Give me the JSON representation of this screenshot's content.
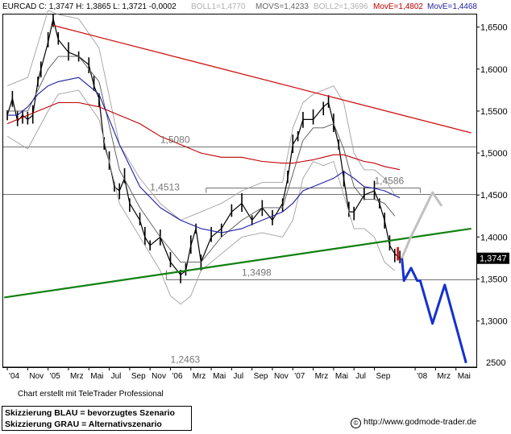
{
  "header": {
    "symbol": "EURCAD C: 1,3747 H: 1,3865 L: 1,3721 -0,0002",
    "boll1": "BOLL1=1,4770",
    "movs": "MOVS=1,4233",
    "boll2": "BOLL2=1,3696",
    "move_red": "MovE=1,4802",
    "move_blue": "MovE=1,4468"
  },
  "footer": {
    "credit": "Chart erstellt mit TeleTrader Professional",
    "legend_blue": "Skizzierung BLAU = bevorzugtes Szenario",
    "legend_grey": "Skizzierung GRAU = Alternativszenario",
    "url": "http://www.godmode-trader.de"
  },
  "colors": {
    "price": "#000000",
    "bollinger": "#a0a0a0",
    "sma": "#555555",
    "ema_long": "#c00000",
    "ema_short": "#1f1fa0",
    "trend_down": "#d01010",
    "trend_up": "#108010",
    "scenario_blue": "#1530d0",
    "scenario_grey": "#c0c0c0",
    "current_price_box": "#000000"
  },
  "chart_data": {
    "type": "line",
    "instrument": "EURCAD",
    "ylim": [
      1.245,
      1.665
    ],
    "y_ticks": [
      1.3,
      1.35,
      1.4,
      1.45,
      1.5,
      1.55,
      1.6,
      1.65
    ],
    "y_tick_labels": [
      "1,3000",
      "1,3500",
      "1,4000",
      "1,4500",
      "1,5000",
      "1,5500",
      "1,6000",
      "1,6500"
    ],
    "y_extra_labels": [
      "2500"
    ],
    "x_tick_labels": [
      "'04",
      "Nov",
      "'05",
      "Mrz",
      "Mai",
      "Jul",
      "Sep",
      "Nov",
      "'06",
      "Mrz",
      "Mai",
      "Jul",
      "Sep",
      "Nov",
      "'07",
      "Mrz",
      "Mai",
      "Jul",
      "Sep",
      "'08",
      "Mrz",
      "Mai"
    ],
    "x_tick_index": [
      0,
      2,
      4,
      6,
      8,
      10,
      12,
      14,
      16,
      18,
      20,
      22,
      24,
      26,
      28,
      30,
      32,
      34,
      36,
      40,
      42,
      44
    ],
    "xlim": [
      -0.4,
      46
    ],
    "current_price": 1.3747,
    "current_price_label": "1,3747",
    "horizontal_levels": [
      {
        "value": 1.508,
        "label": "1,5080"
      },
      {
        "value": 1.4513,
        "label": "1,4513"
      },
      {
        "value": 1.4586,
        "label": "1,4586"
      },
      {
        "value": 1.3498,
        "label": "1,3498"
      },
      {
        "value": 1.2463,
        "label": "1,2463"
      }
    ],
    "trendlines": [
      {
        "name": "down",
        "points": [
          [
            4.5,
            1.652
          ],
          [
            45.5,
            1.524
          ]
        ]
      },
      {
        "name": "up",
        "points": [
          [
            -0.3,
            1.328
          ],
          [
            45.5,
            1.41
          ]
        ]
      }
    ],
    "series": [
      {
        "name": "price",
        "x": [
          0,
          0.5,
          1,
          1.5,
          2,
          2.5,
          3,
          3.3,
          4,
          4.5,
          5,
          6,
          7,
          8,
          8.5,
          9,
          9.5,
          10,
          10.5,
          11,
          11.5,
          12,
          13,
          13.5,
          14,
          15,
          16,
          17,
          17.5,
          18,
          18.5,
          19,
          20,
          21,
          22,
          23,
          24,
          25,
          26,
          27,
          27.5,
          28,
          28.5,
          29,
          30,
          31,
          31.5,
          32,
          32.5,
          33,
          33.5,
          34,
          35,
          36,
          36.5,
          37,
          37.5,
          38,
          38.5
        ],
        "values": [
          1.545,
          1.565,
          1.538,
          1.545,
          1.54,
          1.545,
          1.585,
          1.6,
          1.632,
          1.66,
          1.635,
          1.62,
          1.615,
          1.605,
          1.58,
          1.565,
          1.51,
          1.49,
          1.46,
          1.455,
          1.47,
          1.44,
          1.42,
          1.4,
          1.39,
          1.4,
          1.37,
          1.355,
          1.36,
          1.39,
          1.41,
          1.37,
          1.4,
          1.41,
          1.43,
          1.44,
          1.42,
          1.435,
          1.42,
          1.44,
          1.47,
          1.51,
          1.52,
          1.54,
          1.54,
          1.555,
          1.56,
          1.535,
          1.51,
          1.47,
          1.43,
          1.43,
          1.45,
          1.455,
          1.44,
          1.42,
          1.39,
          1.38,
          1.3747
        ]
      },
      {
        "name": "bollinger-upper",
        "x": [
          0,
          2,
          4,
          5,
          7,
          9,
          11,
          13,
          15,
          17,
          19,
          21,
          23,
          25,
          27,
          28,
          29,
          30,
          31,
          32,
          33,
          34,
          35,
          36,
          37,
          38
        ],
        "values": [
          1.58,
          1.59,
          1.67,
          1.665,
          1.66,
          1.625,
          1.51,
          1.47,
          1.44,
          1.42,
          1.43,
          1.44,
          1.455,
          1.465,
          1.465,
          1.53,
          1.56,
          1.57,
          1.575,
          1.58,
          1.56,
          1.5,
          1.48,
          1.48,
          1.47,
          1.45
        ]
      },
      {
        "name": "bollinger-lower",
        "x": [
          0,
          2,
          4,
          5,
          7,
          9,
          11,
          13,
          15,
          16,
          17,
          18,
          19,
          21,
          23,
          25,
          27,
          28,
          29,
          30,
          31,
          32,
          33,
          34,
          35,
          36,
          37,
          38
        ],
        "values": [
          1.52,
          1.505,
          1.55,
          1.57,
          1.575,
          1.54,
          1.44,
          1.4,
          1.36,
          1.33,
          1.32,
          1.33,
          1.36,
          1.38,
          1.4,
          1.405,
          1.4,
          1.42,
          1.47,
          1.49,
          1.485,
          1.49,
          1.45,
          1.41,
          1.41,
          1.4,
          1.37,
          1.36
        ]
      },
      {
        "name": "sma",
        "x": [
          0,
          2,
          4,
          5,
          7,
          9,
          11,
          13,
          15,
          17,
          19,
          21,
          23,
          25,
          27,
          28,
          29,
          30,
          31,
          32,
          33,
          34,
          35,
          36,
          37,
          38
        ],
        "values": [
          1.55,
          1.55,
          1.6,
          1.615,
          1.615,
          1.585,
          1.48,
          1.435,
          1.4,
          1.37,
          1.37,
          1.4,
          1.42,
          1.435,
          1.435,
          1.475,
          1.515,
          1.53,
          1.53,
          1.535,
          1.505,
          1.46,
          1.445,
          1.445,
          1.44,
          1.425
        ]
      },
      {
        "name": "ema-long",
        "x": [
          0,
          1,
          2,
          3,
          4,
          5,
          7,
          9,
          11,
          13,
          15,
          17,
          19,
          21,
          23,
          25,
          27,
          28,
          29,
          30,
          31,
          32,
          33,
          34,
          35,
          36,
          37,
          38.5
        ],
        "values": [
          1.535,
          1.54,
          1.545,
          1.55,
          1.555,
          1.56,
          1.56,
          1.555,
          1.545,
          1.535,
          1.52,
          1.51,
          1.5,
          1.495,
          1.495,
          1.49,
          1.488,
          1.488,
          1.49,
          1.492,
          1.495,
          1.498,
          1.498,
          1.494,
          1.49,
          1.488,
          1.484,
          1.4802
        ]
      },
      {
        "name": "ema-short",
        "x": [
          0,
          1,
          2,
          3,
          4,
          5,
          7,
          9,
          11,
          13,
          15,
          17,
          19,
          21,
          23,
          25,
          27,
          28,
          29,
          30,
          31,
          32,
          33,
          34,
          35,
          36,
          37,
          38.5
        ],
        "values": [
          1.545,
          1.545,
          1.555,
          1.57,
          1.58,
          1.585,
          1.59,
          1.57,
          1.51,
          1.46,
          1.435,
          1.42,
          1.41,
          1.405,
          1.41,
          1.42,
          1.43,
          1.44,
          1.455,
          1.46,
          1.465,
          1.47,
          1.478,
          1.47,
          1.46,
          1.458,
          1.455,
          1.4468
        ]
      },
      {
        "name": "scenario-blue",
        "x": [
          38.7,
          38.9,
          39.6,
          40.2,
          40.5,
          41.7,
          42.9,
          45.0
        ],
        "values": [
          1.375,
          1.348,
          1.363,
          1.348,
          1.348,
          1.297,
          1.343,
          1.25
        ]
      },
      {
        "name": "scenario-grey",
        "x": [
          38.7,
          39.5,
          41.7,
          42.6
        ],
        "values": [
          1.375,
          1.398,
          1.453,
          1.437
        ]
      }
    ]
  }
}
